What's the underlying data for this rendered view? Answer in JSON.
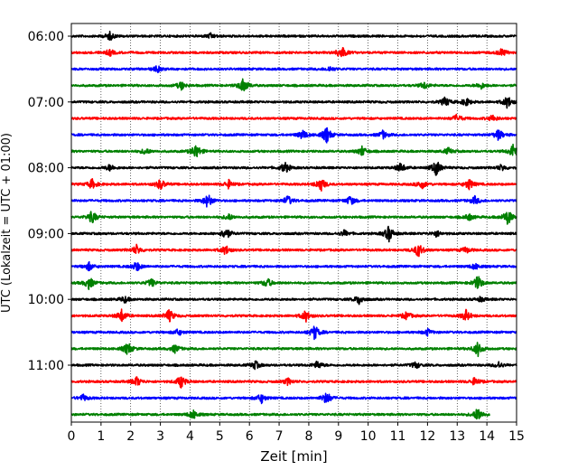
{
  "chart_data": {
    "type": "line",
    "title": "",
    "xlabel": "Zeit  [min]",
    "ylabel": "UTC (Lokalzeit = UTC + 01:00)",
    "xlim": [
      0,
      15
    ],
    "x_ticks": [
      0,
      1,
      2,
      3,
      4,
      5,
      6,
      7,
      8,
      9,
      10,
      11,
      12,
      13,
      14,
      15
    ],
    "y_tick_labels": [
      "06:00",
      "07:00",
      "08:00",
      "09:00",
      "10:00",
      "11:00"
    ],
    "trace_interval_min": 15,
    "grid": {
      "x": "dotted-vertical",
      "y": "none"
    },
    "colors_cycle": [
      "#000000",
      "#ff0000",
      "#0000ff",
      "#008000"
    ],
    "traces": [
      {
        "start": "06:00",
        "color": "#000000",
        "end_min": 15,
        "events": [
          [
            1.3,
            0.5
          ],
          [
            4.7,
            0.3
          ]
        ]
      },
      {
        "start": "06:15",
        "color": "#ff0000",
        "end_min": 15,
        "events": [
          [
            1.3,
            0.4
          ],
          [
            9.1,
            0.9
          ],
          [
            14.5,
            0.5
          ]
        ]
      },
      {
        "start": "06:30",
        "color": "#0000ff",
        "end_min": 15,
        "events": [
          [
            2.9,
            0.4
          ],
          [
            8.7,
            0.3
          ]
        ]
      },
      {
        "start": "06:45",
        "color": "#008000",
        "end_min": 15,
        "events": [
          [
            3.7,
            0.5
          ],
          [
            5.8,
            1.0
          ],
          [
            11.9,
            0.4
          ],
          [
            13.8,
            0.4
          ]
        ]
      },
      {
        "start": "07:00",
        "color": "#000000",
        "end_min": 15,
        "events": [
          [
            12.6,
            0.6
          ],
          [
            13.3,
            0.5
          ],
          [
            14.7,
            0.8
          ]
        ]
      },
      {
        "start": "07:15",
        "color": "#ff0000",
        "end_min": 15,
        "events": [
          [
            13.0,
            0.5
          ],
          [
            14.2,
            0.4
          ]
        ]
      },
      {
        "start": "07:30",
        "color": "#0000ff",
        "end_min": 15,
        "events": [
          [
            7.8,
            0.6
          ],
          [
            8.6,
            1.0
          ],
          [
            10.5,
            0.5
          ],
          [
            14.4,
            0.7
          ]
        ]
      },
      {
        "start": "07:45",
        "color": "#008000",
        "end_min": 15,
        "events": [
          [
            2.5,
            0.4
          ],
          [
            4.2,
            1.0
          ],
          [
            9.8,
            0.6
          ],
          [
            12.7,
            0.4
          ],
          [
            14.9,
            1.0
          ]
        ]
      },
      {
        "start": "08:00",
        "color": "#000000",
        "end_min": 15,
        "events": [
          [
            1.3,
            0.4
          ],
          [
            7.2,
            0.7
          ],
          [
            11.1,
            0.6
          ],
          [
            12.3,
            1.0
          ],
          [
            14.5,
            0.4
          ]
        ]
      },
      {
        "start": "08:15",
        "color": "#ff0000",
        "end_min": 15,
        "events": [
          [
            0.7,
            0.6
          ],
          [
            3.0,
            0.7
          ],
          [
            5.3,
            0.5
          ],
          [
            8.4,
            0.9
          ],
          [
            11.8,
            0.6
          ],
          [
            13.4,
            0.7
          ]
        ]
      },
      {
        "start": "08:30",
        "color": "#0000ff",
        "end_min": 15,
        "events": [
          [
            4.6,
            0.9
          ],
          [
            7.3,
            0.6
          ],
          [
            9.4,
            0.6
          ],
          [
            13.6,
            0.5
          ]
        ]
      },
      {
        "start": "08:45",
        "color": "#008000",
        "end_min": 15,
        "events": [
          [
            0.7,
            0.8
          ],
          [
            5.3,
            0.4
          ],
          [
            13.4,
            0.4
          ],
          [
            14.7,
            1.0
          ]
        ]
      },
      {
        "start": "09:00",
        "color": "#000000",
        "end_min": 15,
        "events": [
          [
            5.2,
            0.8
          ],
          [
            9.2,
            0.4
          ],
          [
            10.7,
            1.0
          ],
          [
            12.3,
            0.4
          ]
        ]
      },
      {
        "start": "09:15",
        "color": "#ff0000",
        "end_min": 15,
        "events": [
          [
            2.2,
            0.6
          ],
          [
            5.2,
            0.6
          ],
          [
            11.7,
            0.9
          ],
          [
            13.3,
            0.4
          ]
        ]
      },
      {
        "start": "09:30",
        "color": "#0000ff",
        "end_min": 15,
        "events": [
          [
            0.6,
            0.5
          ],
          [
            2.2,
            0.6
          ],
          [
            13.6,
            0.4
          ]
        ]
      },
      {
        "start": "09:45",
        "color": "#008000",
        "end_min": 15,
        "events": [
          [
            0.6,
            0.8
          ],
          [
            2.7,
            0.5
          ],
          [
            6.6,
            0.6
          ],
          [
            13.7,
            0.9
          ]
        ]
      },
      {
        "start": "10:00",
        "color": "#000000",
        "end_min": 15,
        "events": [
          [
            1.8,
            0.4
          ],
          [
            9.7,
            0.6
          ],
          [
            13.8,
            0.3
          ]
        ]
      },
      {
        "start": "10:15",
        "color": "#ff0000",
        "end_min": 15,
        "events": [
          [
            1.7,
            0.8
          ],
          [
            3.3,
            0.8
          ],
          [
            7.9,
            0.7
          ],
          [
            11.3,
            0.5
          ],
          [
            13.3,
            0.7
          ]
        ]
      },
      {
        "start": "10:30",
        "color": "#0000ff",
        "end_min": 15,
        "events": [
          [
            3.6,
            0.4
          ],
          [
            8.2,
            0.9
          ],
          [
            12.0,
            0.4
          ]
        ]
      },
      {
        "start": "10:45",
        "color": "#008000",
        "end_min": 15,
        "events": [
          [
            1.9,
            0.8
          ],
          [
            3.5,
            0.5
          ],
          [
            13.7,
            0.9
          ]
        ]
      },
      {
        "start": "11:00",
        "color": "#000000",
        "end_min": 15,
        "events": [
          [
            6.2,
            0.5
          ],
          [
            8.3,
            0.5
          ],
          [
            11.6,
            0.4
          ],
          [
            14.4,
            0.4
          ]
        ]
      },
      {
        "start": "11:15",
        "color": "#ff0000",
        "end_min": 15,
        "events": [
          [
            2.2,
            0.6
          ],
          [
            3.7,
            0.8
          ],
          [
            7.3,
            0.4
          ],
          [
            13.6,
            0.5
          ]
        ]
      },
      {
        "start": "11:30",
        "color": "#0000ff",
        "end_min": 15,
        "events": [
          [
            0.4,
            0.4
          ],
          [
            6.4,
            0.6
          ],
          [
            8.6,
            0.8
          ]
        ]
      },
      {
        "start": "11:45",
        "color": "#008000",
        "end_min": 14.1,
        "events": [
          [
            4.1,
            0.6
          ],
          [
            13.7,
            0.9
          ]
        ]
      }
    ]
  }
}
